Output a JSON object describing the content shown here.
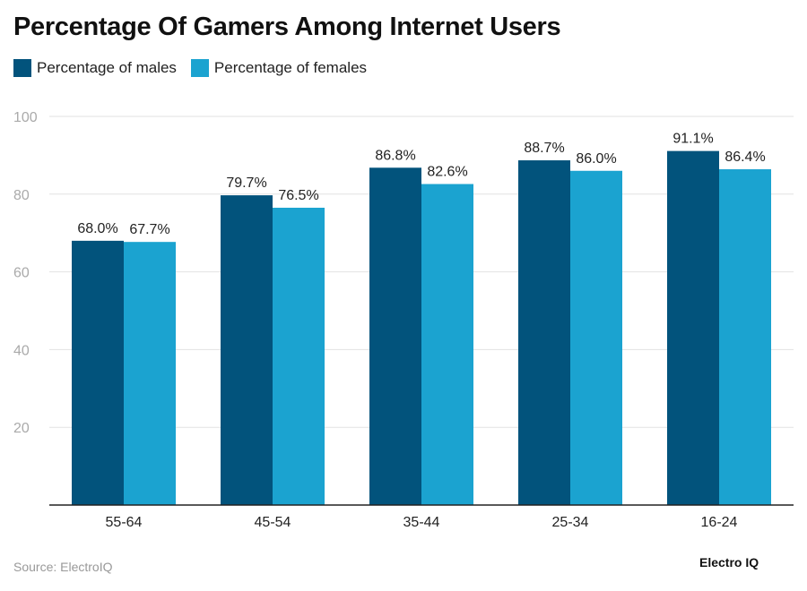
{
  "chart_data": {
    "type": "bar",
    "title": "Percentage Of Gamers Among Internet Users",
    "categories": [
      "55-64",
      "45-54",
      "35-44",
      "25-34",
      "16-24"
    ],
    "series": [
      {
        "name": "Percentage of males",
        "color": "#02537c",
        "values": [
          68.0,
          79.7,
          86.8,
          88.7,
          91.1
        ]
      },
      {
        "name": "Percentage of females",
        "color": "#1ba3d0",
        "values": [
          67.7,
          76.5,
          82.6,
          86.0,
          86.4
        ]
      }
    ],
    "ylim": [
      0,
      100
    ],
    "yticks": [
      20,
      40,
      60,
      80,
      100
    ],
    "value_suffix": "%",
    "grid": true,
    "legend_position": "top-left",
    "xlabel": "",
    "ylabel": ""
  },
  "footer": {
    "source": "Source: ElectroIQ",
    "brand": "Electro IQ"
  }
}
